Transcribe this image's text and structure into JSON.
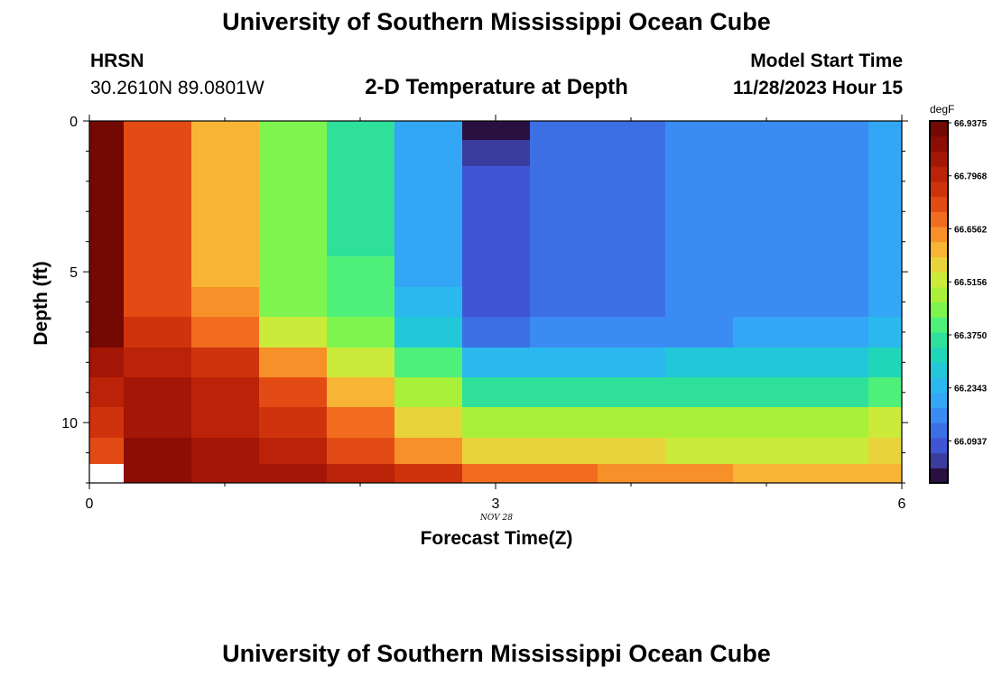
{
  "header": {
    "title": "University of Southern Mississippi Ocean Cube",
    "station": "HRSN",
    "coords": "30.2610N  89.0801W",
    "plot_title": "2-D Temperature at Depth",
    "model_start_label": "Model Start Time",
    "model_start_value": "11/28/2023 Hour 15"
  },
  "footer": {
    "title": "University of Southern Mississippi Ocean Cube"
  },
  "colorbar": {
    "unit": "degF",
    "ticks": [
      "66.9375",
      "66.7968",
      "66.6562",
      "66.5156",
      "66.3750",
      "66.2343",
      "66.0937"
    ],
    "colors": [
      "#2a1040",
      "#3b3d9e",
      "#4055d6",
      "#3c6fe4",
      "#3a8cf2",
      "#33a6f5",
      "#2ab8ee",
      "#22c8d8",
      "#20d6b8",
      "#2fe09a",
      "#4ff07a",
      "#7ef44f",
      "#a8f03a",
      "#ccea3a",
      "#e8d43a",
      "#f8b535",
      "#f8902a",
      "#f26c20",
      "#e34b14",
      "#cf330c",
      "#bb2308",
      "#a41606",
      "#8c0d04",
      "#740802"
    ]
  },
  "chart_data": {
    "type": "heatmap",
    "title": "2-D Temperature at Depth",
    "xlabel": "Forecast Time(Z)",
    "ylabel": "Depth (ft)",
    "x_ticks": [
      "0",
      "3",
      "6"
    ],
    "y_ticks": [
      "0",
      "5",
      "10"
    ],
    "x_date_label": "NOV 28",
    "xlim": [
      0,
      6
    ],
    "ylim": [
      0,
      12
    ],
    "x_centers": [
      0,
      0.5,
      1,
      1.5,
      2,
      2.5,
      3,
      3.5,
      4,
      4.5,
      5,
      5.5,
      6
    ],
    "y_centers": [
      0.25,
      1,
      2,
      3,
      4,
      5,
      6,
      7,
      8,
      9,
      10,
      11,
      11.75
    ],
    "values": [
      [
        23,
        18,
        15,
        11,
        9,
        5,
        0,
        3,
        3,
        4,
        4,
        4,
        5
      ],
      [
        23,
        18,
        15,
        11,
        9,
        5,
        1,
        3,
        3,
        4,
        4,
        4,
        5
      ],
      [
        23,
        18,
        15,
        11,
        9,
        5,
        2,
        3,
        3,
        4,
        4,
        4,
        5
      ],
      [
        23,
        18,
        15,
        11,
        9,
        5,
        2,
        3,
        3,
        4,
        4,
        4,
        5
      ],
      [
        23,
        18,
        15,
        11,
        9,
        5,
        2,
        3,
        3,
        4,
        4,
        4,
        5
      ],
      [
        23,
        18,
        15,
        11,
        10,
        5,
        2,
        3,
        3,
        4,
        4,
        4,
        5
      ],
      [
        23,
        18,
        16,
        11,
        10,
        6,
        2,
        3,
        3,
        4,
        4,
        4,
        5
      ],
      [
        23,
        19,
        17,
        13,
        11,
        7,
        3,
        4,
        4,
        4,
        5,
        5,
        6
      ],
      [
        21,
        20,
        19,
        16,
        13,
        10,
        6,
        6,
        6,
        7,
        7,
        7,
        8
      ],
      [
        20,
        21,
        20,
        18,
        15,
        12,
        9,
        9,
        9,
        9,
        9,
        9,
        10
      ],
      [
        19,
        21,
        20,
        19,
        17,
        14,
        12,
        12,
        12,
        12,
        12,
        12,
        13
      ],
      [
        18,
        22,
        21,
        20,
        18,
        16,
        14,
        14,
        14,
        13,
        13,
        13,
        14
      ],
      [
        null,
        22,
        21,
        21,
        20,
        19,
        17,
        17,
        16,
        16,
        15,
        15,
        15
      ]
    ]
  }
}
